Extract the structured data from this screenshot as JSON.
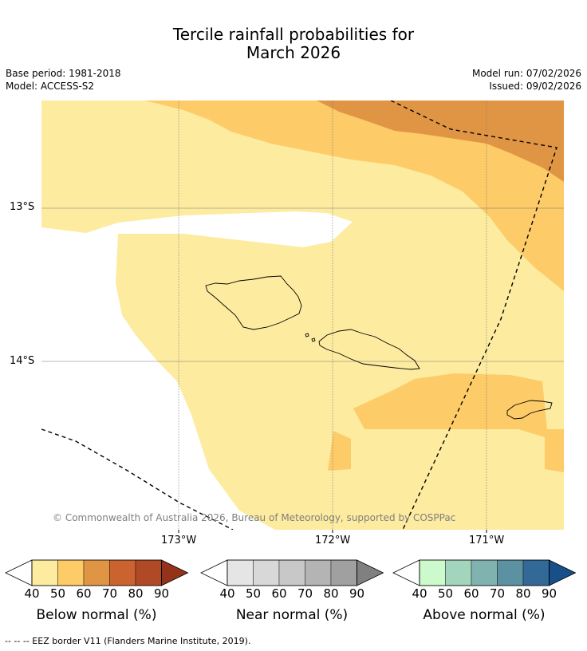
{
  "title": {
    "line1": "Tercile rainfall probabilities for",
    "line2": "March 2026"
  },
  "meta": {
    "base_period": "Base period: 1981-2018",
    "model": "Model: ACCESS-S2",
    "model_run": "Model run: 07/02/2026",
    "issued": "Issued: 09/02/2026"
  },
  "map": {
    "lat_labels": [
      "13°S",
      "14°S"
    ],
    "lon_labels": [
      "173°W",
      "172°W",
      "171°W"
    ],
    "copyright": "© Commonwealth of Australia 2026, Bureau of Meteorology, supported by COSPPac",
    "colors": {
      "below_40": "#fdeba0",
      "below_50": "#fdcb67",
      "below_60": "#e09545",
      "ocean_none": "#ffffff"
    }
  },
  "legends": [
    {
      "title": "Below normal (%)",
      "ticks": [
        "40",
        "50",
        "60",
        "70",
        "80",
        "90"
      ],
      "colors": [
        "#fdeba0",
        "#fdcb67",
        "#e09545",
        "#cb6331",
        "#b04a26",
        "#943319"
      ]
    },
    {
      "title": "Near normal (%)",
      "ticks": [
        "40",
        "50",
        "60",
        "70",
        "80",
        "90"
      ],
      "colors": [
        "#e5e5e5",
        "#d8d8d8",
        "#c8c8c8",
        "#b4b4b4",
        "#a0a0a0",
        "#808080"
      ]
    },
    {
      "title": "Above normal (%)",
      "ticks": [
        "40",
        "50",
        "60",
        "70",
        "80",
        "90"
      ],
      "colors": [
        "#ccfacc",
        "#a3d4bc",
        "#80b3b0",
        "#5b91a0",
        "#336996",
        "#184f88"
      ]
    }
  ],
  "footer": "--  --  -- EEZ border V11 (Flanders Marine Institute, 2019)."
}
